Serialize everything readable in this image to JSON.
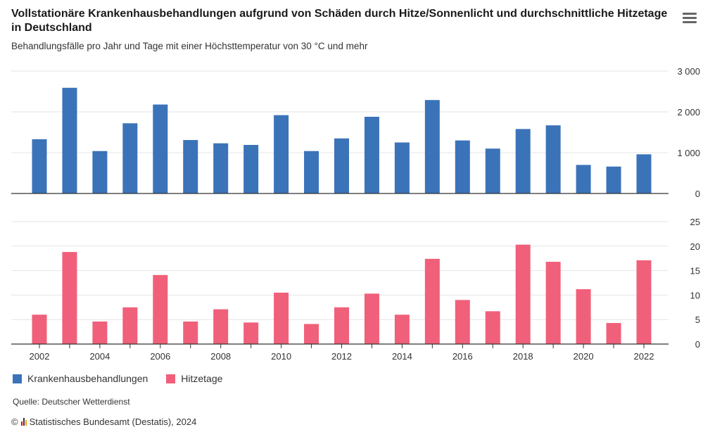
{
  "header": {
    "title": "Vollstationäre Krankenhausbehandlungen aufgrund von Schäden durch Hitze/Sonnenlicht und durchschnittliche Hitzetage in Deutschland",
    "subtitle": "Behandlungsfälle pro Jahr und Tage mit einer Höchsttemperatur von 30 °C und mehr"
  },
  "menu": {
    "icon": "hamburger-menu-icon"
  },
  "legend": {
    "items": [
      {
        "label": "Krankenhausbehandlungen",
        "color": "#3b73b9"
      },
      {
        "label": "Hitzetage",
        "color": "#f0607a"
      }
    ]
  },
  "footer": {
    "source": "Quelle: Deutscher Wetterdienst",
    "copyright_symbol": "©",
    "credit": "Statistisches Bundesamt (Destatis), 2024"
  },
  "chart_data": [
    {
      "type": "bar",
      "series": [
        {
          "name": "Krankenhausbehandlungen",
          "color": "#3b73b9",
          "values": [
            1330,
            2590,
            1040,
            1720,
            2180,
            1310,
            1230,
            1190,
            1920,
            1040,
            1350,
            1880,
            1250,
            2290,
            1300,
            1100,
            1580,
            1670,
            700,
            660,
            960
          ]
        }
      ],
      "x": [
        2002,
        2003,
        2004,
        2005,
        2006,
        2007,
        2008,
        2009,
        2010,
        2011,
        2012,
        2013,
        2014,
        2015,
        2016,
        2017,
        2018,
        2019,
        2020,
        2021,
        2022
      ],
      "ylim": [
        0,
        3000
      ],
      "yticks": [
        0,
        1000,
        2000,
        3000
      ],
      "ytick_labels": [
        "0",
        "1 000",
        "2 000",
        "3 000"
      ],
      "grid": true
    },
    {
      "type": "bar",
      "series": [
        {
          "name": "Hitzetage",
          "color": "#f0607a",
          "values": [
            6.0,
            18.8,
            4.6,
            7.5,
            14.1,
            4.6,
            7.1,
            4.4,
            10.5,
            4.1,
            7.5,
            10.3,
            6.0,
            17.4,
            9.0,
            6.7,
            20.3,
            16.8,
            11.2,
            4.3,
            17.1
          ]
        }
      ],
      "x": [
        2002,
        2003,
        2004,
        2005,
        2006,
        2007,
        2008,
        2009,
        2010,
        2011,
        2012,
        2013,
        2014,
        2015,
        2016,
        2017,
        2018,
        2019,
        2020,
        2021,
        2022
      ],
      "ylim": [
        0,
        25
      ],
      "yticks": [
        0,
        5,
        10,
        15,
        20,
        25
      ],
      "ytick_labels": [
        "0",
        "5",
        "10",
        "15",
        "20",
        "25"
      ],
      "xtick_labels": [
        "2002",
        "2004",
        "2006",
        "2008",
        "2010",
        "2012",
        "2014",
        "2016",
        "2018",
        "2020",
        "2022"
      ],
      "grid": true
    }
  ]
}
